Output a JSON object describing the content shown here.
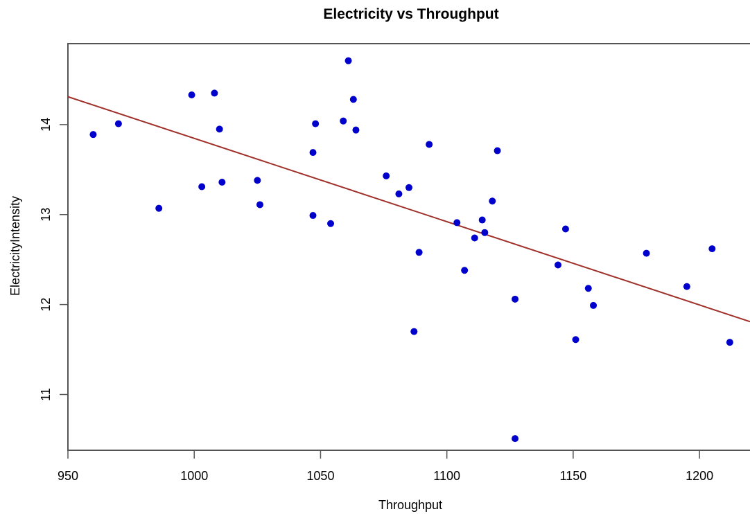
{
  "chart_data": {
    "type": "scatter",
    "title": "Electricity vs Throughput",
    "xlabel": "Throughput",
    "ylabel": "ElectricityIntensity",
    "xlim": [
      950,
      1220
    ],
    "ylim": [
      10.38,
      14.9
    ],
    "x_ticks": [
      950,
      1000,
      1050,
      1100,
      1150,
      1200
    ],
    "y_ticks": [
      11,
      12,
      13,
      14
    ],
    "grid": false,
    "point_color": "#0000cc",
    "line_color": "#a0302a",
    "trend_line": {
      "x": [
        950,
        1220
      ],
      "y": [
        14.31,
        11.81
      ]
    },
    "points": [
      {
        "x": 960,
        "y": 13.89
      },
      {
        "x": 970,
        "y": 14.01
      },
      {
        "x": 986,
        "y": 13.07
      },
      {
        "x": 999,
        "y": 14.33
      },
      {
        "x": 1003,
        "y": 13.31
      },
      {
        "x": 1008,
        "y": 14.35
      },
      {
        "x": 1010,
        "y": 13.95
      },
      {
        "x": 1011,
        "y": 13.36
      },
      {
        "x": 1025,
        "y": 13.38
      },
      {
        "x": 1026,
        "y": 13.11
      },
      {
        "x": 1047,
        "y": 13.69
      },
      {
        "x": 1047,
        "y": 12.99
      },
      {
        "x": 1048,
        "y": 14.01
      },
      {
        "x": 1054,
        "y": 12.9
      },
      {
        "x": 1059,
        "y": 14.04
      },
      {
        "x": 1061,
        "y": 14.71
      },
      {
        "x": 1063,
        "y": 14.28
      },
      {
        "x": 1064,
        "y": 13.94
      },
      {
        "x": 1076,
        "y": 13.43
      },
      {
        "x": 1081,
        "y": 13.23
      },
      {
        "x": 1085,
        "y": 13.3
      },
      {
        "x": 1087,
        "y": 11.7
      },
      {
        "x": 1089,
        "y": 12.58
      },
      {
        "x": 1093,
        "y": 13.78
      },
      {
        "x": 1104,
        "y": 12.91
      },
      {
        "x": 1107,
        "y": 12.38
      },
      {
        "x": 1111,
        "y": 12.74
      },
      {
        "x": 1114,
        "y": 12.94
      },
      {
        "x": 1115,
        "y": 12.8
      },
      {
        "x": 1118,
        "y": 13.15
      },
      {
        "x": 1120,
        "y": 13.71
      },
      {
        "x": 1127,
        "y": 12.06
      },
      {
        "x": 1127,
        "y": 10.51
      },
      {
        "x": 1144,
        "y": 12.44
      },
      {
        "x": 1147,
        "y": 12.84
      },
      {
        "x": 1151,
        "y": 11.61
      },
      {
        "x": 1156,
        "y": 12.18
      },
      {
        "x": 1158,
        "y": 11.99
      },
      {
        "x": 1179,
        "y": 12.57
      },
      {
        "x": 1195,
        "y": 12.2
      },
      {
        "x": 1205,
        "y": 12.62
      },
      {
        "x": 1212,
        "y": 11.58
      }
    ]
  }
}
